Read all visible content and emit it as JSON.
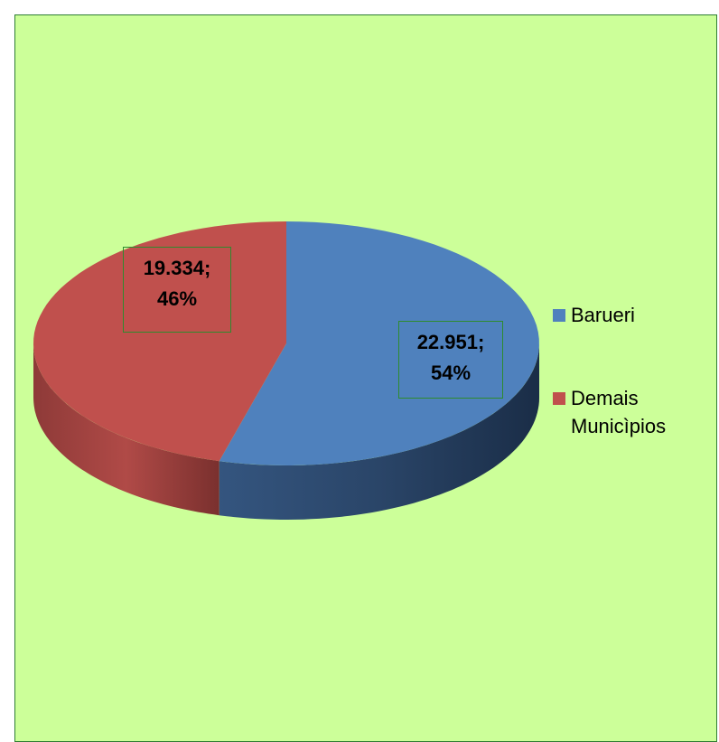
{
  "chart_data": {
    "type": "pie",
    "categories": [
      "Barueri",
      "Demais Municìpios"
    ],
    "values": [
      22951,
      19334
    ],
    "value_labels": [
      "22.951; 54%",
      "19.334; 46%"
    ],
    "colors": [
      "#4f81bd",
      "#c0504d"
    ],
    "legend": "right"
  }
}
